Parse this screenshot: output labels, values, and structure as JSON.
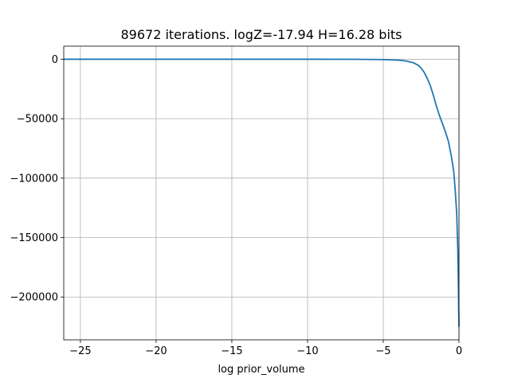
{
  "chart_data": {
    "type": "line",
    "title": "89672 iterations. logZ=-17.94 H=16.28 bits",
    "xlabel": "log prior_volume",
    "ylabel": "",
    "xlim": [
      -26.1,
      0.0
    ],
    "ylim": [
      -236000,
      11000
    ],
    "grid": true,
    "x_ticks": [
      -25,
      -20,
      -15,
      -10,
      -5,
      0
    ],
    "x_tick_labels": [
      "−25",
      "−20",
      "−15",
      "−10",
      "−5",
      "0"
    ],
    "y_ticks": [
      0,
      -50000,
      -100000,
      -150000,
      -200000
    ],
    "y_tick_labels": [
      "0",
      "−50000",
      "−100000",
      "−150000",
      "−200000"
    ],
    "series": [
      {
        "color": "#1f77b4",
        "x": [
          -26.1,
          -20,
          -15,
          -10,
          -7,
          -5,
          -4,
          -3.5,
          -3,
          -2.7,
          -2.5,
          -2.3,
          -2.1,
          -1.9,
          -1.7,
          -1.5,
          -1.3,
          -1.1,
          -0.9,
          -0.7,
          -0.5,
          -0.35,
          -0.25,
          -0.15,
          -0.08,
          -0.04,
          -0.02,
          0.0
        ],
        "y": [
          0,
          0,
          0,
          0,
          -50,
          -300,
          -800,
          -1500,
          -3000,
          -5000,
          -7500,
          -11000,
          -16000,
          -22000,
          -30000,
          -39000,
          -47000,
          -54000,
          -61000,
          -69000,
          -82000,
          -94000,
          -110000,
          -130000,
          -160000,
          -190000,
          -210000,
          -225000
        ]
      }
    ]
  }
}
